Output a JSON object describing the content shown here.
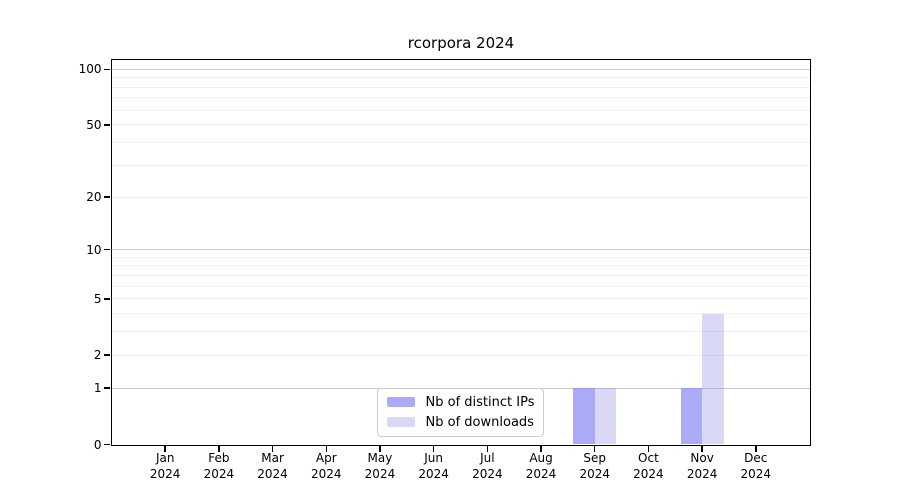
{
  "chart_data": {
    "type": "bar",
    "title": "rcorpora 2024",
    "year": "2024",
    "months": [
      "Jan",
      "Feb",
      "Mar",
      "Apr",
      "May",
      "Jun",
      "Jul",
      "Aug",
      "Sep",
      "Oct",
      "Nov",
      "Dec"
    ],
    "categories": [
      "Jan 2024",
      "Feb 2024",
      "Mar 2024",
      "Apr 2024",
      "May 2024",
      "Jun 2024",
      "Jul 2024",
      "Aug 2024",
      "Sep 2024",
      "Oct 2024",
      "Nov 2024",
      "Dec 2024"
    ],
    "series": [
      {
        "name": "Nb of distinct IPs",
        "color": "rgba(136,136,245,0.7)",
        "color_hex": "#ababf8",
        "values": [
          0,
          0,
          0,
          0,
          0,
          0,
          0,
          0,
          1,
          0,
          1,
          0
        ]
      },
      {
        "name": "Nb of downloads",
        "color": "rgba(136,136,230,0.32)",
        "color_hex": "#dbdbf8",
        "values": [
          0,
          0,
          0,
          0,
          0,
          0,
          0,
          0,
          1,
          0,
          4,
          0
        ]
      }
    ],
    "y_axis": {
      "scale": "log1p",
      "ymin": 0,
      "ymax": 113,
      "tick_values": [
        0,
        1,
        2,
        5,
        10,
        20,
        50,
        100
      ],
      "tick_labels": [
        "0",
        "1",
        "2",
        "5",
        "10",
        "20",
        "50",
        "100"
      ],
      "major_gridlines": [
        1,
        10,
        100
      ],
      "minor_gridlines": [
        2,
        3,
        4,
        5,
        6,
        7,
        8,
        9,
        20,
        30,
        40,
        50,
        60,
        70,
        80,
        90
      ]
    },
    "x_axis": {
      "second_line": "2024"
    },
    "legend": {
      "position": "lower center"
    },
    "grid": {
      "major_color": "#c9c9c9",
      "minor_color": "#efefef"
    },
    "spine_color": "#000000"
  }
}
